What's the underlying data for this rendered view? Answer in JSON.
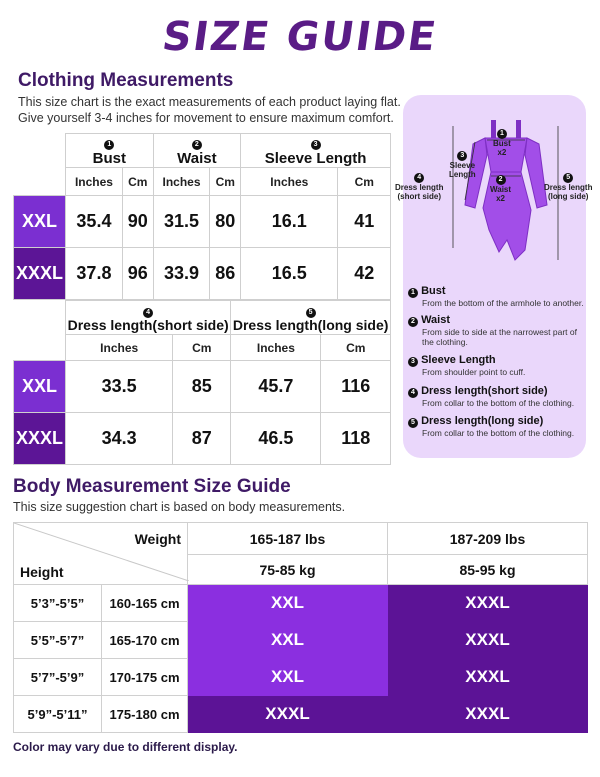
{
  "title": "SIZE GUIDE",
  "clothing": {
    "heading": "Clothing Measurements",
    "desc1": "This size chart is the exact measurements of each product laying flat.",
    "desc2": "Give yourself 3-4 inches for movement to ensure maximum comfort.",
    "table1": {
      "headers": [
        {
          "num": "1",
          "label": "Bust"
        },
        {
          "num": "2",
          "label": "Waist"
        },
        {
          "num": "3",
          "label": "Sleeve Length"
        }
      ],
      "units": [
        "Inches",
        "Cm",
        "Inches",
        "Cm",
        "Inches",
        "Cm"
      ],
      "rows": [
        {
          "size": "XXL",
          "values": [
            "35.4",
            "90",
            "31.5",
            "80",
            "16.1",
            "41"
          ]
        },
        {
          "size": "XXXL",
          "values": [
            "37.8",
            "96",
            "33.9",
            "86",
            "16.5",
            "42"
          ]
        }
      ]
    },
    "table2": {
      "headers": [
        {
          "num": "4",
          "label": "Dress length(short side)"
        },
        {
          "num": "5",
          "label": "Dress length(long side)"
        }
      ],
      "units": [
        "Inches",
        "Cm",
        "Inches",
        "Cm"
      ],
      "rows": [
        {
          "size": "XXL",
          "values": [
            "33.5",
            "85",
            "45.7",
            "116"
          ]
        },
        {
          "size": "XXXL",
          "values": [
            "34.3",
            "87",
            "46.5",
            "118"
          ]
        }
      ]
    }
  },
  "diagram": {
    "labels": {
      "bust": "Bust\nx2",
      "sleeve": "Sleeve\nLength",
      "waist": "Waist\nx2",
      "short": "Dress length\n(short side)",
      "long": "Dress length\n(long side)"
    },
    "nums": {
      "bust": "1",
      "waist": "2",
      "sleeve": "3",
      "short": "4",
      "long": "5"
    },
    "colors": {
      "panel": "#ead7fb",
      "dress": "#a24ee8",
      "dress_dark": "#7e2fc4"
    },
    "legend": [
      {
        "num": "1",
        "title": "Bust",
        "desc": "From the bottom of the armhole to another."
      },
      {
        "num": "2",
        "title": "Waist",
        "desc": "From side to side at the narrowest part of the clothing."
      },
      {
        "num": "3",
        "title": "Sleeve Length",
        "desc": "From shoulder point to cuff."
      },
      {
        "num": "4",
        "title": "Dress length(short side)",
        "desc": "From collar to the bottom of the clothing."
      },
      {
        "num": "5",
        "title": "Dress length(long side)",
        "desc": "From collar to the bottom of the clothing."
      }
    ]
  },
  "body": {
    "heading": "Body Measurement Size Guide",
    "desc": "This size suggestion chart is based on body measurements.",
    "weight_label": "Weight",
    "height_label": "Height",
    "weights": [
      {
        "lbs": "165-187 lbs",
        "kg": "75-85 kg"
      },
      {
        "lbs": "187-209 lbs",
        "kg": "85-95 kg"
      }
    ],
    "rows": [
      {
        "ft": "5’3”-5’5”",
        "cm": "160-165 cm",
        "sizes": [
          "XXL",
          "XXXL"
        ]
      },
      {
        "ft": "5’5”-5’7”",
        "cm": "165-170 cm",
        "sizes": [
          "XXL",
          "XXXL"
        ]
      },
      {
        "ft": "5’7”-5’9”",
        "cm": "170-175 cm",
        "sizes": [
          "XXL",
          "XXXL"
        ]
      },
      {
        "ft": "5’9”-5’11”",
        "cm": "175-180 cm",
        "sizes": [
          "XXXL",
          "XXXL"
        ]
      }
    ]
  },
  "footer": "Color may vary due to different display."
}
